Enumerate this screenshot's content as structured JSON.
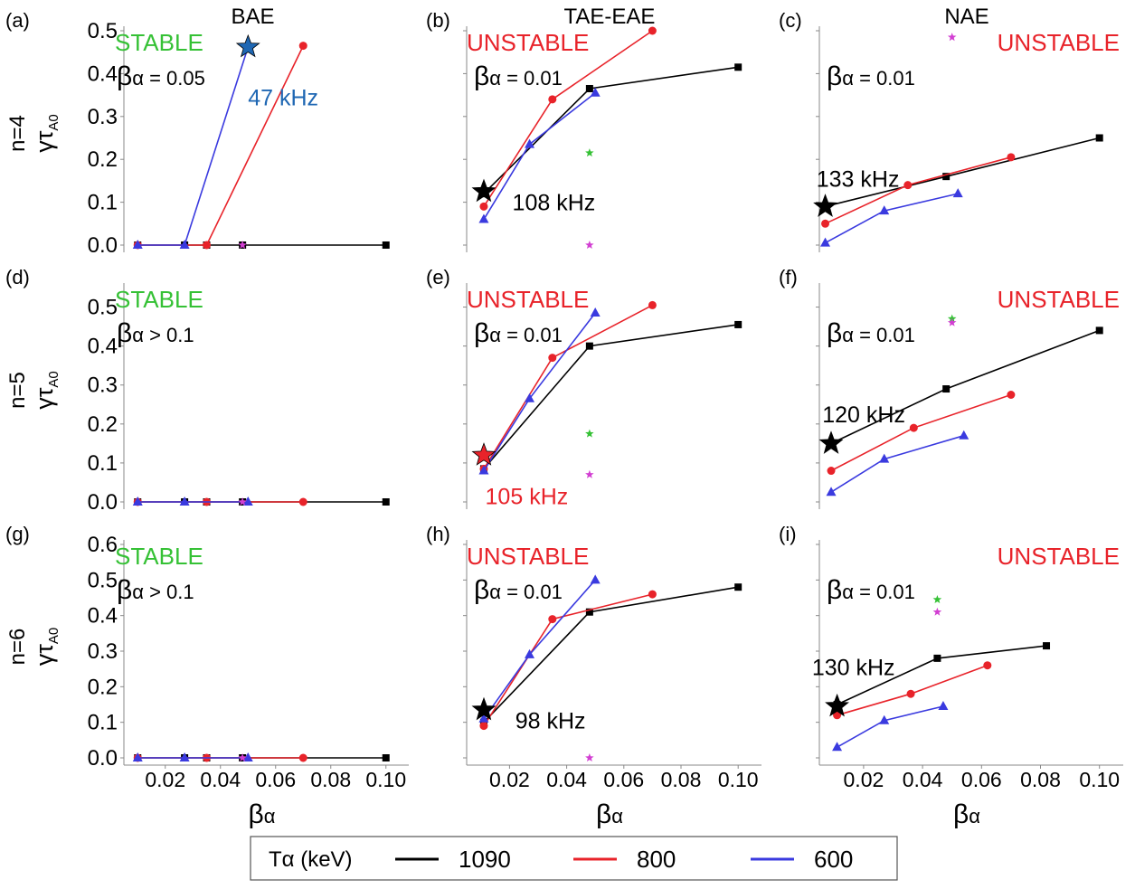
{
  "colors": {
    "black": "#000000",
    "red": "#e8232a",
    "blue": "#3a3adf",
    "green": "#35c135",
    "magenta": "#d23fd2",
    "annot_blue": "#1f67b3",
    "axis": "#888888"
  },
  "columns": [
    "BAE",
    "TAE-EAE",
    "NAE"
  ],
  "rows": [
    {
      "label": "n=4",
      "ylabel": "γτ",
      "ylabel_sub": "A0"
    },
    {
      "label": "n=5",
      "ylabel": "γτ",
      "ylabel_sub": "A0"
    },
    {
      "label": "n=6",
      "ylabel": "γτ",
      "ylabel_sub": "A0"
    }
  ],
  "xlabel": {
    "main": "β",
    "sub": "α"
  },
  "legend": {
    "title": "Tα (keV)",
    "entries": [
      {
        "label": "1090",
        "color": "#000000"
      },
      {
        "label": "800",
        "color": "#e8232a"
      },
      {
        "label": "600",
        "color": "#3a3adf"
      }
    ]
  },
  "chart_data": [
    {
      "type": "line",
      "panel": "(a)",
      "title": "BAE",
      "xlim": [
        0.005,
        0.105
      ],
      "ylim": [
        0,
        0.5
      ],
      "yticks": [
        "0.0",
        "0.1",
        "0.2",
        "0.3",
        "0.4",
        "0.5"
      ],
      "xticks": [],
      "status": "STABLE",
      "status_color": "#35c135",
      "beta_text": "β",
      "beta_sub": "α",
      "beta_rest": " = 0.05",
      "series": [
        {
          "name": "1090",
          "color": "#000000",
          "marker": "square",
          "x": [
            0.01,
            0.027,
            0.035,
            0.048,
            0.1
          ],
          "y": [
            0,
            0,
            0,
            0,
            0
          ]
        },
        {
          "name": "800",
          "color": "#e8232a",
          "marker": "circle",
          "x": [
            0.01,
            0.035,
            0.07
          ],
          "y": [
            0,
            0,
            0.465
          ]
        },
        {
          "name": "600",
          "color": "#3a3adf",
          "marker": "triangle",
          "x": [
            0.01,
            0.027,
            0.05
          ],
          "y": [
            0,
            0,
            0.462
          ]
        }
      ],
      "stars": [
        {
          "x": 0.05,
          "y": 0.462,
          "color": "#1f67b3",
          "size": 13
        },
        {
          "x": 0.048,
          "y": 0.0,
          "color": "#d23fd2",
          "size": 5
        }
      ],
      "annotations": [
        {
          "text": "47 kHz",
          "x": 0.05,
          "y": 0.345,
          "color": "#1f67b3"
        }
      ]
    },
    {
      "type": "line",
      "panel": "(b)",
      "title": "TAE-EAE",
      "xlim": [
        0.005,
        0.105
      ],
      "ylim": [
        0,
        0.5
      ],
      "yticks": [],
      "xticks": [],
      "status": "UNSTABLE",
      "status_color": "#e8232a",
      "beta_text": "β",
      "beta_sub": "α",
      "beta_rest": " = 0.01",
      "series": [
        {
          "name": "1090",
          "color": "#000000",
          "marker": "square",
          "x": [
            0.011,
            0.048,
            0.1
          ],
          "y": [
            0.12,
            0.365,
            0.415
          ]
        },
        {
          "name": "800",
          "color": "#e8232a",
          "marker": "circle",
          "x": [
            0.011,
            0.035,
            0.07
          ],
          "y": [
            0.09,
            0.34,
            0.5
          ]
        },
        {
          "name": "600",
          "color": "#3a3adf",
          "marker": "triangle",
          "x": [
            0.011,
            0.027,
            0.05
          ],
          "y": [
            0.06,
            0.235,
            0.355
          ]
        }
      ],
      "stars": [
        {
          "x": 0.011,
          "y": 0.125,
          "color": "#000000",
          "size": 13
        },
        {
          "x": 0.048,
          "y": 0.215,
          "color": "#35c135",
          "size": 5
        },
        {
          "x": 0.048,
          "y": 0.0,
          "color": "#d23fd2",
          "size": 5
        }
      ],
      "annotations": [
        {
          "text": "108 kHz",
          "x": 0.021,
          "y": 0.1,
          "color": "#000000"
        }
      ]
    },
    {
      "type": "line",
      "panel": "(c)",
      "title": "NAE",
      "xlim": [
        0.005,
        0.105
      ],
      "ylim": [
        0,
        0.5
      ],
      "yticks": [],
      "xticks": [],
      "status": "UNSTABLE",
      "status_color": "#e8232a",
      "beta_text": "β",
      "beta_sub": "α",
      "beta_rest": " = 0.01",
      "series": [
        {
          "name": "1090",
          "color": "#000000",
          "marker": "square",
          "x": [
            0.007,
            0.048,
            0.1
          ],
          "y": [
            0.09,
            0.16,
            0.25
          ]
        },
        {
          "name": "800",
          "color": "#e8232a",
          "marker": "circle",
          "x": [
            0.007,
            0.035,
            0.07
          ],
          "y": [
            0.05,
            0.14,
            0.205
          ]
        },
        {
          "name": "600",
          "color": "#3a3adf",
          "marker": "triangle",
          "x": [
            0.007,
            0.027,
            0.052
          ],
          "y": [
            0.005,
            0.08,
            0.12
          ]
        }
      ],
      "stars": [
        {
          "x": 0.007,
          "y": 0.09,
          "color": "#000000",
          "size": 13
        },
        {
          "x": 0.05,
          "y": 0.485,
          "color": "#d23fd2",
          "size": 5
        }
      ],
      "annotations": [
        {
          "text": "133 kHz",
          "x": 0.004,
          "y": 0.155,
          "color": "#000000"
        }
      ]
    },
    {
      "type": "line",
      "panel": "(d)",
      "title": "",
      "xlim": [
        0.005,
        0.105
      ],
      "ylim": [
        0,
        0.55
      ],
      "yticks": [
        "0.0",
        "0.1",
        "0.2",
        "0.3",
        "0.4",
        "0.5"
      ],
      "xticks": [],
      "status": "STABLE",
      "status_color": "#35c135",
      "beta_text": "β",
      "beta_sub": "α",
      "beta_rest": " > 0.1",
      "series": [
        {
          "name": "1090",
          "color": "#000000",
          "marker": "square",
          "x": [
            0.01,
            0.027,
            0.035,
            0.048,
            0.1
          ],
          "y": [
            0,
            0,
            0,
            0,
            0
          ]
        },
        {
          "name": "800",
          "color": "#e8232a",
          "marker": "circle",
          "x": [
            0.01,
            0.035,
            0.07
          ],
          "y": [
            0,
            0,
            0
          ]
        },
        {
          "name": "600",
          "color": "#3a3adf",
          "marker": "triangle",
          "x": [
            0.01,
            0.027,
            0.05
          ],
          "y": [
            0,
            0,
            0
          ]
        }
      ],
      "stars": [
        {
          "x": 0.048,
          "y": 0.0,
          "color": "#d23fd2",
          "size": 5
        }
      ],
      "annotations": []
    },
    {
      "type": "line",
      "panel": "(e)",
      "title": "",
      "xlim": [
        0.005,
        0.105
      ],
      "ylim": [
        0,
        0.55
      ],
      "yticks": [],
      "xticks": [],
      "status": "UNSTABLE",
      "status_color": "#e8232a",
      "beta_text": "β",
      "beta_sub": "α",
      "beta_rest": " = 0.01",
      "series": [
        {
          "name": "1090",
          "color": "#000000",
          "marker": "square",
          "x": [
            0.011,
            0.048,
            0.1
          ],
          "y": [
            0.085,
            0.4,
            0.455
          ]
        },
        {
          "name": "800",
          "color": "#e8232a",
          "marker": "circle",
          "x": [
            0.011,
            0.035,
            0.07
          ],
          "y": [
            0.085,
            0.37,
            0.505
          ]
        },
        {
          "name": "600",
          "color": "#3a3adf",
          "marker": "triangle",
          "x": [
            0.011,
            0.027,
            0.05
          ],
          "y": [
            0.08,
            0.265,
            0.485
          ]
        }
      ],
      "stars": [
        {
          "x": 0.011,
          "y": 0.12,
          "color": "#e8232a",
          "size": 13
        },
        {
          "x": 0.048,
          "y": 0.175,
          "color": "#35c135",
          "size": 5
        },
        {
          "x": 0.048,
          "y": 0.07,
          "color": "#d23fd2",
          "size": 5
        }
      ],
      "annotations": [
        {
          "text": "105 kHz",
          "x": 0.0115,
          "y": 0.015,
          "color": "#e8232a"
        }
      ]
    },
    {
      "type": "line",
      "panel": "(f)",
      "title": "",
      "xlim": [
        0.005,
        0.105
      ],
      "ylim": [
        0,
        0.55
      ],
      "yticks": [],
      "xticks": [],
      "status": "UNSTABLE",
      "status_color": "#e8232a",
      "beta_text": "β",
      "beta_sub": "α",
      "beta_rest": " = 0.01",
      "series": [
        {
          "name": "1090",
          "color": "#000000",
          "marker": "square",
          "x": [
            0.009,
            0.048,
            0.1
          ],
          "y": [
            0.15,
            0.29,
            0.44
          ]
        },
        {
          "name": "800",
          "color": "#e8232a",
          "marker": "circle",
          "x": [
            0.009,
            0.037,
            0.07
          ],
          "y": [
            0.08,
            0.19,
            0.275
          ]
        },
        {
          "name": "600",
          "color": "#3a3adf",
          "marker": "triangle",
          "x": [
            0.009,
            0.027,
            0.054
          ],
          "y": [
            0.025,
            0.11,
            0.17
          ]
        }
      ],
      "stars": [
        {
          "x": 0.009,
          "y": 0.15,
          "color": "#000000",
          "size": 13
        },
        {
          "x": 0.05,
          "y": 0.47,
          "color": "#35c135",
          "size": 5
        },
        {
          "x": 0.05,
          "y": 0.46,
          "color": "#d23fd2",
          "size": 5
        }
      ],
      "annotations": [
        {
          "text": "120 kHz",
          "x": 0.006,
          "y": 0.225,
          "color": "#000000"
        }
      ]
    },
    {
      "type": "line",
      "panel": "(g)",
      "title": "",
      "xlim": [
        0.005,
        0.105
      ],
      "ylim": [
        0,
        0.6
      ],
      "yticks": [
        "0.0",
        "0.1",
        "0.2",
        "0.3",
        "0.4",
        "0.5",
        "0.6"
      ],
      "xticks": [
        "0.02",
        "0.04",
        "0.06",
        "0.08",
        "0.10"
      ],
      "xtick_values": [
        0.02,
        0.04,
        0.06,
        0.08,
        0.1
      ],
      "status": "STABLE",
      "status_color": "#35c135",
      "beta_text": "β",
      "beta_sub": "α",
      "beta_rest": " > 0.1",
      "series": [
        {
          "name": "1090",
          "color": "#000000",
          "marker": "square",
          "x": [
            0.01,
            0.027,
            0.035,
            0.048,
            0.1
          ],
          "y": [
            0,
            0,
            0,
            0,
            0
          ]
        },
        {
          "name": "800",
          "color": "#e8232a",
          "marker": "circle",
          "x": [
            0.01,
            0.035,
            0.07
          ],
          "y": [
            0,
            0,
            0
          ]
        },
        {
          "name": "600",
          "color": "#3a3adf",
          "marker": "triangle",
          "x": [
            0.01,
            0.027,
            0.05
          ],
          "y": [
            0,
            0,
            0
          ]
        }
      ],
      "stars": [
        {
          "x": 0.048,
          "y": 0.0,
          "color": "#d23fd2",
          "size": 5
        }
      ],
      "annotations": []
    },
    {
      "type": "line",
      "panel": "(h)",
      "title": "",
      "xlim": [
        0.005,
        0.105
      ],
      "ylim": [
        0,
        0.6
      ],
      "yticks": [],
      "xticks": [
        "0.02",
        "0.04",
        "0.06",
        "0.08",
        "0.10"
      ],
      "xtick_values": [
        0.02,
        0.04,
        0.06,
        0.08,
        0.1
      ],
      "status": "UNSTABLE",
      "status_color": "#e8232a",
      "beta_text": "β",
      "beta_sub": "α",
      "beta_rest": " = 0.01",
      "series": [
        {
          "name": "1090",
          "color": "#000000",
          "marker": "square",
          "x": [
            0.011,
            0.048,
            0.1
          ],
          "y": [
            0.1,
            0.41,
            0.48
          ]
        },
        {
          "name": "800",
          "color": "#e8232a",
          "marker": "circle",
          "x": [
            0.011,
            0.035,
            0.07
          ],
          "y": [
            0.09,
            0.39,
            0.46
          ]
        },
        {
          "name": "600",
          "color": "#3a3adf",
          "marker": "triangle",
          "x": [
            0.011,
            0.027,
            0.05
          ],
          "y": [
            0.11,
            0.29,
            0.5
          ]
        }
      ],
      "stars": [
        {
          "x": 0.011,
          "y": 0.135,
          "color": "#000000",
          "size": 13
        },
        {
          "x": 0.048,
          "y": 0.0,
          "color": "#d23fd2",
          "size": 5
        }
      ],
      "annotations": [
        {
          "text": "98 kHz",
          "x": 0.022,
          "y": 0.105,
          "color": "#000000"
        }
      ]
    },
    {
      "type": "line",
      "panel": "(i)",
      "title": "",
      "xlim": [
        0.005,
        0.105
      ],
      "ylim": [
        0,
        0.6
      ],
      "yticks": [],
      "xticks": [
        "0.02",
        "0.04",
        "0.06",
        "0.08",
        "0.10"
      ],
      "xtick_values": [
        0.02,
        0.04,
        0.06,
        0.08,
        0.1
      ],
      "status": "UNSTABLE",
      "status_color": "#e8232a",
      "beta_text": "β",
      "beta_sub": "α",
      "beta_rest": " = 0.01",
      "series": [
        {
          "name": "1090",
          "color": "#000000",
          "marker": "square",
          "x": [
            0.011,
            0.045,
            0.082
          ],
          "y": [
            0.15,
            0.28,
            0.315
          ]
        },
        {
          "name": "800",
          "color": "#e8232a",
          "marker": "circle",
          "x": [
            0.011,
            0.036,
            0.062
          ],
          "y": [
            0.12,
            0.18,
            0.26
          ]
        },
        {
          "name": "600",
          "color": "#3a3adf",
          "marker": "triangle",
          "x": [
            0.011,
            0.027,
            0.047
          ],
          "y": [
            0.03,
            0.105,
            0.145
          ]
        }
      ],
      "stars": [
        {
          "x": 0.011,
          "y": 0.145,
          "color": "#000000",
          "size": 13
        },
        {
          "x": 0.045,
          "y": 0.445,
          "color": "#35c135",
          "size": 5
        },
        {
          "x": 0.045,
          "y": 0.41,
          "color": "#d23fd2",
          "size": 5
        }
      ],
      "annotations": [
        {
          "text": "130 kHz",
          "x": 0.0025,
          "y": 0.255,
          "color": "#000000"
        }
      ]
    }
  ]
}
